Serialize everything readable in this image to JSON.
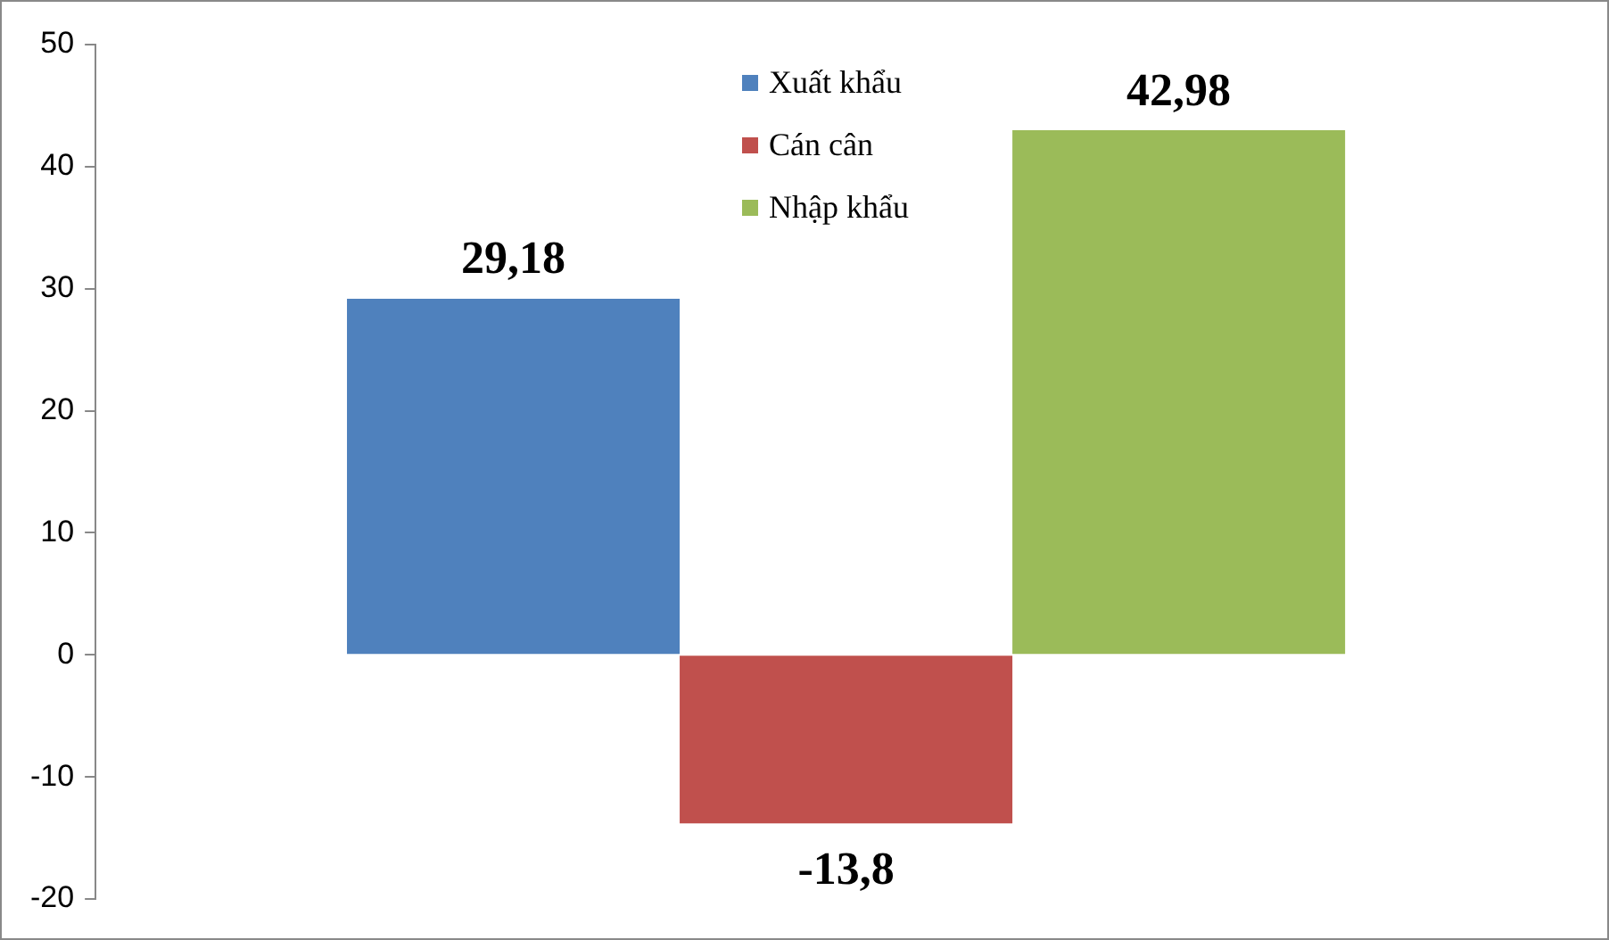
{
  "chart_data": {
    "type": "bar",
    "categories": [
      null
    ],
    "series": [
      {
        "name": "Xuất khẩu",
        "color": "#4f81bd",
        "values": [
          29.18
        ],
        "value_labels": [
          "29,18"
        ]
      },
      {
        "name": "Cán cân",
        "color": "#c0504d",
        "values": [
          -13.8
        ],
        "value_labels": [
          "-13,8"
        ]
      },
      {
        "name": "Nhập khẩu",
        "color": "#9bbb59",
        "values": [
          42.98
        ],
        "value_labels": [
          "42,98"
        ]
      }
    ],
    "ylim": [
      -20,
      50
    ],
    "yticks": [
      -20,
      -10,
      0,
      10,
      20,
      30,
      40,
      50
    ],
    "grid": false,
    "legend": "top"
  }
}
